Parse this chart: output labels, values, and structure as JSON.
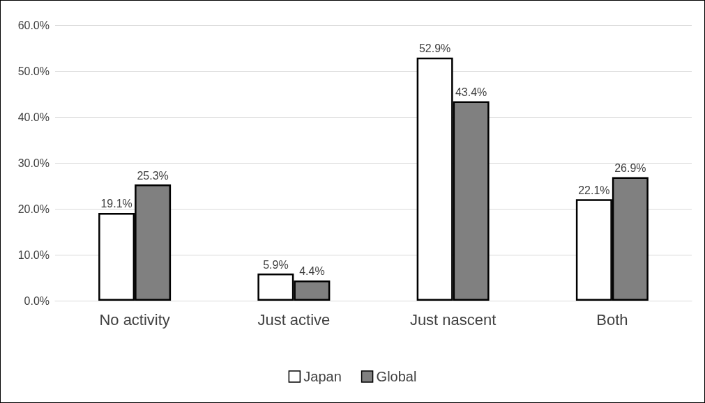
{
  "chart_data": {
    "type": "bar",
    "categories": [
      "No activity",
      "Just active",
      "Just nascent",
      "Both"
    ],
    "series": [
      {
        "name": "Japan",
        "color": "#ffffff",
        "values": [
          19.1,
          5.9,
          52.9,
          22.1
        ],
        "value_labels": [
          "19.1%",
          "5.9%",
          "52.9%",
          "22.1%"
        ]
      },
      {
        "name": "Global",
        "color": "#808080",
        "values": [
          25.3,
          4.4,
          43.4,
          26.9
        ],
        "value_labels": [
          "25.3%",
          "4.4%",
          "43.4%",
          "26.9%"
        ]
      }
    ],
    "ylim": [
      0,
      60
    ],
    "yticks": [
      {
        "value": 0,
        "label": "0.0%"
      },
      {
        "value": 10,
        "label": "10.0%"
      },
      {
        "value": 20,
        "label": "20.0%"
      },
      {
        "value": 30,
        "label": "30.0%"
      },
      {
        "value": 40,
        "label": "40.0%"
      },
      {
        "value": 50,
        "label": "50.0%"
      },
      {
        "value": 60,
        "label": "60.0%"
      }
    ],
    "grid": "y",
    "legend": "bottom"
  }
}
